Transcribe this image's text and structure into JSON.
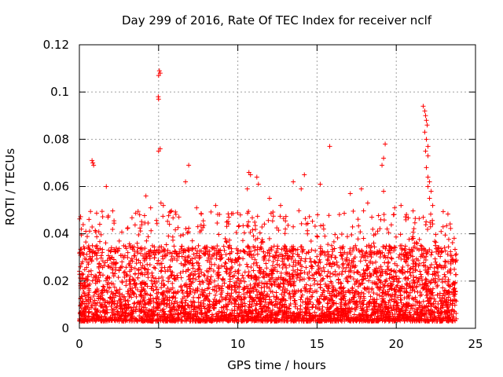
{
  "chart_data": {
    "type": "scatter",
    "title": "Day 299 of 2016, Rate Of TEC Index for receiver nclf",
    "xlabel": "GPS time / hours",
    "ylabel": "ROTI / TECUs",
    "xlim": [
      0,
      25
    ],
    "ylim": [
      0,
      0.12
    ],
    "x_ticks": [
      "0",
      "5",
      "10",
      "15",
      "20",
      "25"
    ],
    "y_ticks": [
      "0",
      "0.02",
      "0.04",
      "0.06",
      "0.08",
      "0.1",
      "0.12"
    ],
    "grid": true,
    "marker": "+",
    "color": "#ff0000",
    "series": [
      {
        "name": "ROTI",
        "x_range": [
          0,
          23.8
        ],
        "baseline_min": 0.003,
        "typical_max": 0.035,
        "outliers": [
          {
            "x": 0.8,
            "y": 0.071
          },
          {
            "x": 0.85,
            "y": 0.07
          },
          {
            "x": 0.9,
            "y": 0.069
          },
          {
            "x": 1.7,
            "y": 0.06
          },
          {
            "x": 4.2,
            "y": 0.056
          },
          {
            "x": 4.5,
            "y": 0.051
          },
          {
            "x": 5.0,
            "y": 0.107
          },
          {
            "x": 5.05,
            "y": 0.109
          },
          {
            "x": 5.1,
            "y": 0.108
          },
          {
            "x": 5.0,
            "y": 0.097
          },
          {
            "x": 4.98,
            "y": 0.098
          },
          {
            "x": 5.0,
            "y": 0.075
          },
          {
            "x": 5.1,
            "y": 0.076
          },
          {
            "x": 5.15,
            "y": 0.053
          },
          {
            "x": 5.3,
            "y": 0.052
          },
          {
            "x": 6.7,
            "y": 0.062
          },
          {
            "x": 6.9,
            "y": 0.069
          },
          {
            "x": 7.4,
            "y": 0.051
          },
          {
            "x": 8.6,
            "y": 0.052
          },
          {
            "x": 10.7,
            "y": 0.066
          },
          {
            "x": 10.8,
            "y": 0.065
          },
          {
            "x": 11.2,
            "y": 0.064
          },
          {
            "x": 11.3,
            "y": 0.061
          },
          {
            "x": 10.6,
            "y": 0.059
          },
          {
            "x": 12.0,
            "y": 0.055
          },
          {
            "x": 12.7,
            "y": 0.052
          },
          {
            "x": 13.5,
            "y": 0.062
          },
          {
            "x": 14.2,
            "y": 0.065
          },
          {
            "x": 14.0,
            "y": 0.059
          },
          {
            "x": 15.2,
            "y": 0.061
          },
          {
            "x": 15.8,
            "y": 0.077
          },
          {
            "x": 17.1,
            "y": 0.057
          },
          {
            "x": 17.8,
            "y": 0.059
          },
          {
            "x": 18.2,
            "y": 0.053
          },
          {
            "x": 19.3,
            "y": 0.078
          },
          {
            "x": 19.2,
            "y": 0.072
          },
          {
            "x": 19.1,
            "y": 0.069
          },
          {
            "x": 19.2,
            "y": 0.058
          },
          {
            "x": 19.9,
            "y": 0.051
          },
          {
            "x": 20.3,
            "y": 0.052
          },
          {
            "x": 21.7,
            "y": 0.094
          },
          {
            "x": 21.8,
            "y": 0.092
          },
          {
            "x": 21.85,
            "y": 0.09
          },
          {
            "x": 21.9,
            "y": 0.088
          },
          {
            "x": 21.95,
            "y": 0.086
          },
          {
            "x": 21.8,
            "y": 0.083
          },
          {
            "x": 21.9,
            "y": 0.08
          },
          {
            "x": 22.0,
            "y": 0.077
          },
          {
            "x": 21.85,
            "y": 0.075
          },
          {
            "x": 22.0,
            "y": 0.073
          },
          {
            "x": 21.9,
            "y": 0.068
          },
          {
            "x": 22.0,
            "y": 0.064
          },
          {
            "x": 22.1,
            "y": 0.062
          },
          {
            "x": 22.0,
            "y": 0.06
          },
          {
            "x": 22.2,
            "y": 0.058
          },
          {
            "x": 22.1,
            "y": 0.055
          },
          {
            "x": 22.3,
            "y": 0.052
          }
        ]
      }
    ]
  }
}
